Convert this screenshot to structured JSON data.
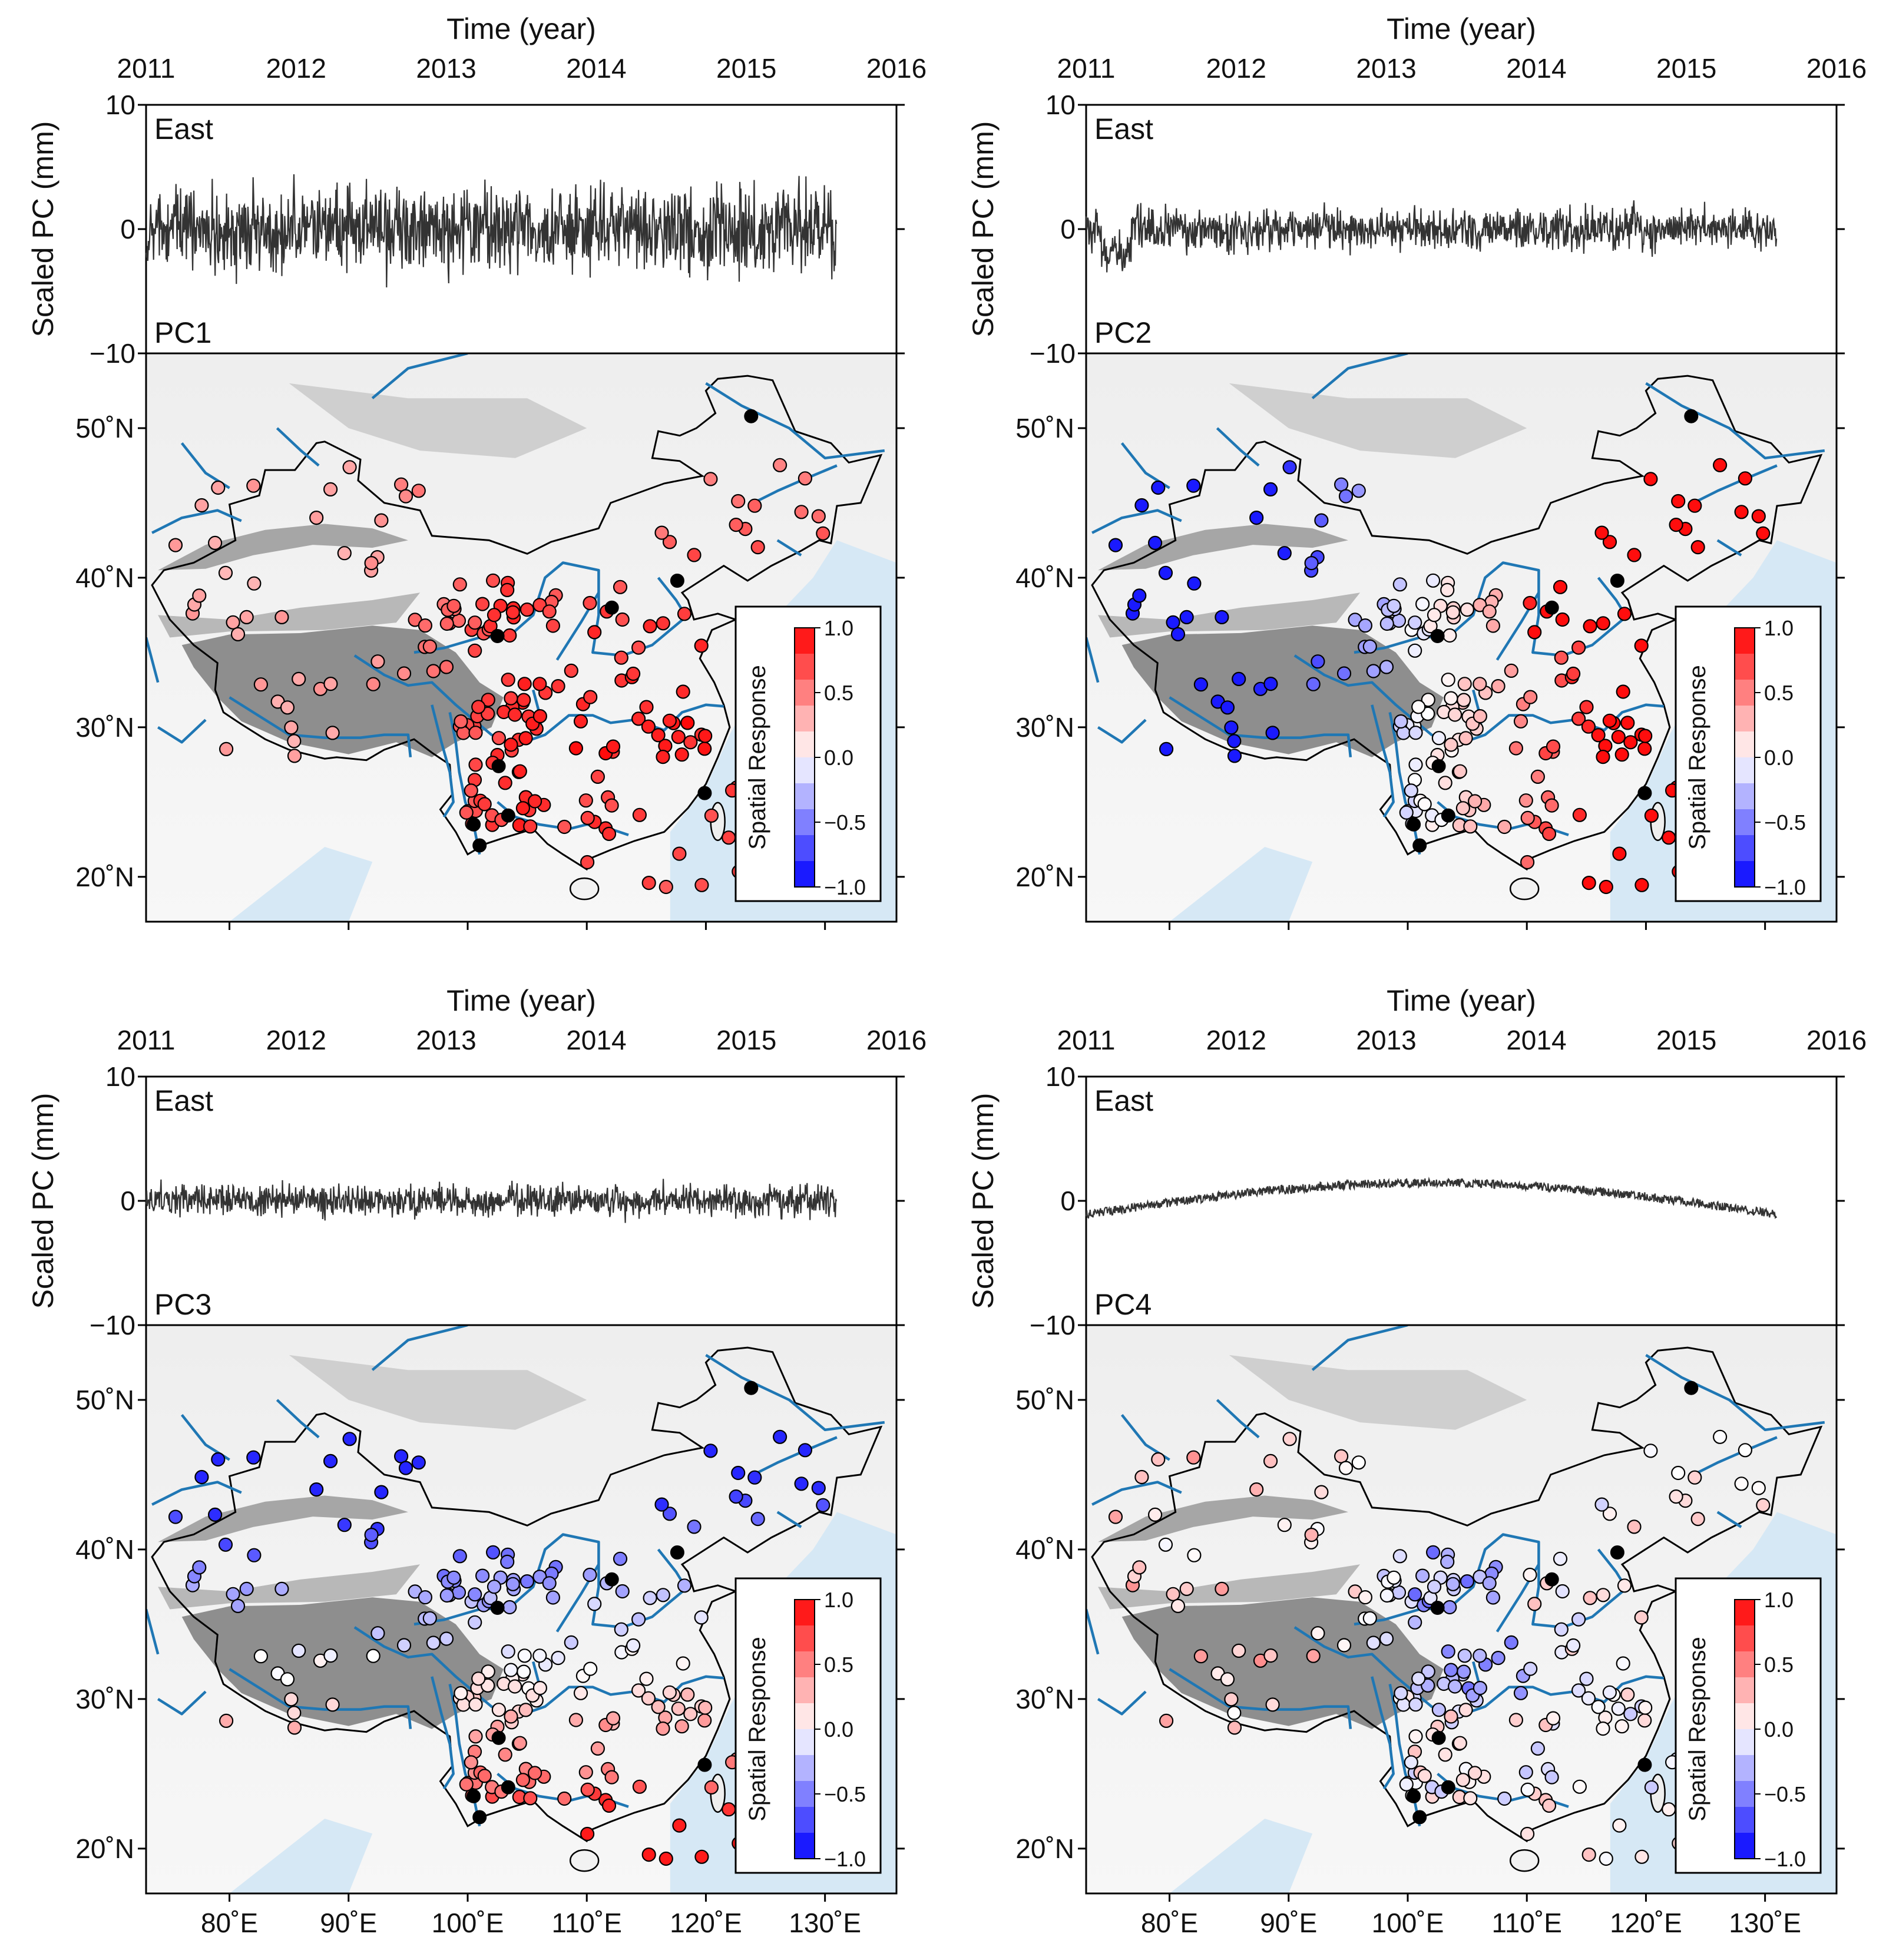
{
  "figure": {
    "top_axis_title": "Time (year)",
    "y_axis_title": "Scaled PC (mm)",
    "component_label": "East",
    "colorbar_title": "Spatial Response",
    "colorbar_ticks": [
      "1.0",
      "0.5",
      "0.0",
      "−0.5",
      "−1.0"
    ],
    "time_ticks": [
      "2011",
      "2012",
      "2013",
      "2014",
      "2015",
      "2016"
    ],
    "pc_ticks": [
      "10",
      "0",
      "−10"
    ],
    "lat_ticks": [
      "50˚N",
      "40˚N",
      "30˚N",
      "20˚N"
    ],
    "lon_ticks": [
      "80˚E",
      "90˚E",
      "100˚E",
      "110˚E",
      "120˚E",
      "130˚E"
    ],
    "colors": {
      "positive": "#ff0000",
      "negative": "#0000ff",
      "neutral": "#ffffff",
      "river": "#1f77b4",
      "sea": "#d6e8f5",
      "reference_station": "#000000",
      "time_series": "#333333"
    }
  },
  "chart_data": [
    {
      "type": "line",
      "panel": "PC1",
      "title": "PC1",
      "component": "East",
      "xlabel": "Time (year)",
      "ylabel": "Scaled PC (mm)",
      "xlim": [
        2011,
        2016
      ],
      "ylim": [
        -10,
        10
      ],
      "series": [
        {
          "name": "PC1",
          "t_start": 2011.0,
          "t_end": 2015.6,
          "amplitude_mm": 2.5,
          "trend": "stationary noise, ~±4 mm peaks"
        }
      ],
      "map": {
        "type": "scatter",
        "lon_range": [
          73,
          136
        ],
        "lat_range": [
          17,
          55
        ],
        "response_range": [
          -1.0,
          1.0
        ],
        "summary": "all stations positive, strongest (~1.0) in central/south China, weaker (~0.3) in west"
      }
    },
    {
      "type": "line",
      "panel": "PC2",
      "title": "PC2",
      "component": "East",
      "xlabel": "Time (year)",
      "ylabel": "Scaled PC (mm)",
      "xlim": [
        2011,
        2016
      ],
      "ylim": [
        -10,
        10
      ],
      "series": [
        {
          "name": "PC2",
          "t_start": 2011.0,
          "t_end": 2015.6,
          "amplitude_mm": 1.3,
          "trend": "stationary noise with early dip to ~−4 mm"
        }
      ],
      "map": {
        "type": "scatter",
        "lon_range": [
          73,
          136
        ],
        "lat_range": [
          17,
          55
        ],
        "response_range": [
          -1.0,
          1.0
        ],
        "summary": "negative (blue) in west, positive (red) in east/north-east"
      }
    },
    {
      "type": "line",
      "panel": "PC3",
      "title": "PC3",
      "component": "East",
      "xlabel": "Time (year)",
      "ylabel": "Scaled PC (mm)",
      "xlim": [
        2011,
        2016
      ],
      "ylim": [
        -10,
        10
      ],
      "series": [
        {
          "name": "PC3",
          "t_start": 2011.0,
          "t_end": 2015.6,
          "amplitude_mm": 1.0,
          "trend": "stationary noise"
        }
      ],
      "map": {
        "type": "scatter",
        "lon_range": [
          73,
          136
        ],
        "lat_range": [
          17,
          55
        ],
        "response_range": [
          -1.0,
          1.0
        ],
        "summary": "negative in north/west, positive in south"
      }
    },
    {
      "type": "line",
      "panel": "PC4",
      "title": "PC4",
      "component": "East",
      "xlabel": "Time (year)",
      "ylabel": "Scaled PC (mm)",
      "xlim": [
        2011,
        2016
      ],
      "ylim": [
        -10,
        10
      ],
      "series": [
        {
          "name": "PC4",
          "t_start": 2011.0,
          "t_end": 2015.6,
          "amplitude_mm": 0.4,
          "trend": "smooth arch from −1 mm to +1.5 mm (mid-2013) back to −1 mm"
        }
      ],
      "map": {
        "type": "scatter",
        "lon_range": [
          73,
          136
        ],
        "lat_range": [
          17,
          55
        ],
        "response_range": [
          -1.0,
          1.0
        ],
        "summary": "mixed weak responses, mostly near zero"
      }
    }
  ]
}
